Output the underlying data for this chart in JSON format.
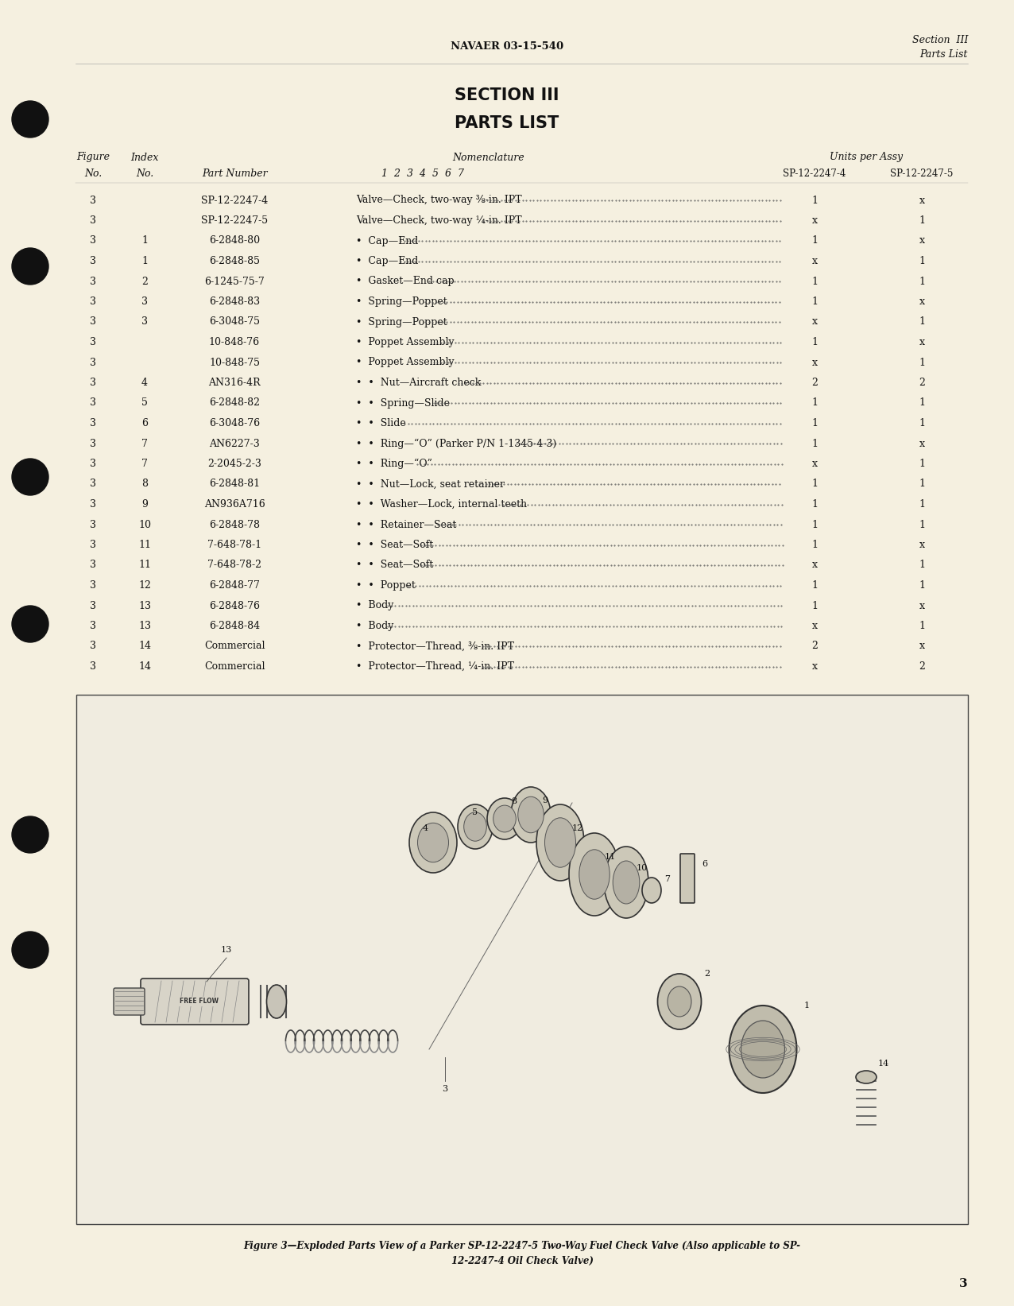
{
  "bg_color": "#f5f0e0",
  "page_bg": "#f5f0e0",
  "header_center": "NAVAER 03-15-540",
  "header_right_line1": "Section  III",
  "header_right_line2": "Parts List",
  "section_title": "SECTION III",
  "section_subtitle": "PARTS LIST",
  "rows": [
    [
      "3",
      "",
      "SP-12-2247-4",
      "Valve—Check, two-way ⅜-in. IPT",
      "1",
      "x"
    ],
    [
      "3",
      "",
      "SP-12-2247-5",
      "Valve—Check, two-way ¼-in. IPT",
      "x",
      "1"
    ],
    [
      "3",
      "1",
      "6-2848-80",
      "•  Cap—End",
      "1",
      "x"
    ],
    [
      "3",
      "1",
      "6-2848-85",
      "•  Cap—End",
      "x",
      "1"
    ],
    [
      "3",
      "2",
      "6-1245-75-7",
      "•  Gasket—End cap",
      "1",
      "1"
    ],
    [
      "3",
      "3",
      "6-2848-83",
      "•  Spring—Poppet",
      "1",
      "x"
    ],
    [
      "3",
      "3",
      "6-3048-75",
      "•  Spring—Poppet",
      "x",
      "1"
    ],
    [
      "3",
      "",
      "10-848-76",
      "•  Poppet Assembly",
      "1",
      "x"
    ],
    [
      "3",
      "",
      "10-848-75",
      "•  Poppet Assembly",
      "x",
      "1"
    ],
    [
      "3",
      "4",
      "AN316-4R",
      "•  •  Nut—Aircraft check",
      "2",
      "2"
    ],
    [
      "3",
      "5",
      "6-2848-82",
      "•  •  Spring—Slide",
      "1",
      "1"
    ],
    [
      "3",
      "6",
      "6-3048-76",
      "•  •  Slide",
      "1",
      "1"
    ],
    [
      "3",
      "7",
      "AN6227-3",
      "•  •  Ring—“O” (Parker P/N 1-1345-4-3)",
      "1",
      "x"
    ],
    [
      "3",
      "7",
      "2-2045-2-3",
      "•  •  Ring—“O”",
      "x",
      "1"
    ],
    [
      "3",
      "8",
      "6-2848-81",
      "•  •  Nut—Lock, seat retainer",
      "1",
      "1"
    ],
    [
      "3",
      "9",
      "AN936A716",
      "•  •  Washer—Lock, internal teeth",
      "1",
      "1"
    ],
    [
      "3",
      "10",
      "6-2848-78",
      "•  •  Retainer—Seat",
      "1",
      "1"
    ],
    [
      "3",
      "11",
      "7-648-78-1",
      "•  •  Seat—Soft",
      "1",
      "x"
    ],
    [
      "3",
      "11",
      "7-648-78-2",
      "•  •  Seat—Soft",
      "x",
      "1"
    ],
    [
      "3",
      "12",
      "6-2848-77",
      "•  •  Poppet",
      "1",
      "1"
    ],
    [
      "3",
      "13",
      "6-2848-76",
      "•  Body",
      "1",
      "x"
    ],
    [
      "3",
      "13",
      "6-2848-84",
      "•  Body",
      "x",
      "1"
    ],
    [
      "3",
      "14",
      "Commercial",
      "•  Protector—Thread, ⅜-in. IPT",
      "2",
      "x"
    ],
    [
      "3",
      "14",
      "Commercial",
      "•  Protector—Thread, ¼-in. IPT",
      "x",
      "2"
    ]
  ],
  "figure_caption_bold": "Figure 3—Exploded Parts View of a Parker SP-12-2247-5 Two-Way Fuel Check Valve (Also applicable to SP-",
  "figure_caption_bold2": "12-2247-4 Oil Check Valve)",
  "page_number": "3"
}
